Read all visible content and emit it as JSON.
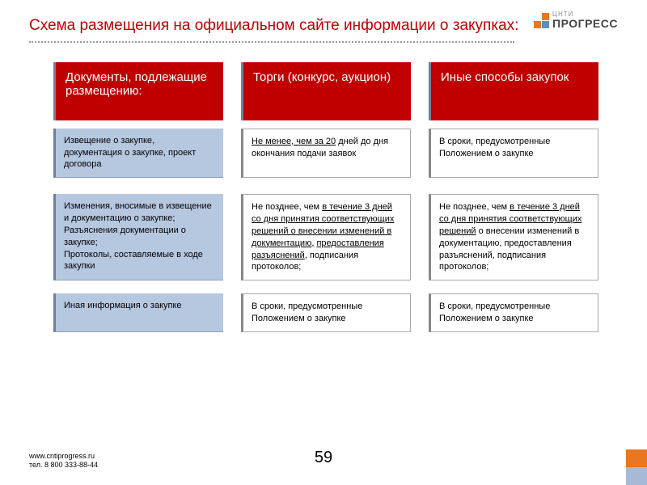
{
  "title": "Схема размещения на официальном сайте информации о закупках:",
  "logo": {
    "small": "ЦНТИ",
    "big": "ПРОГРЕСС"
  },
  "headers": {
    "col1": "Документы, подлежащие размещению:",
    "col2": "Торги (конкурс, аукцион)",
    "col3": "Иные способы закупок"
  },
  "row1": {
    "left": "Извещение о закупке, документация о закупке, проект договора",
    "c2_pre": "",
    "c2_u": "Не менее, чем за 20",
    "c2_post": " дней до дня окончания подачи заявок",
    "c3": "В сроки, предусмотренные Положением о закупке"
  },
  "row2": {
    "left": "Изменения, вносимые в извещение и документацию о закупке;\nРазъяснения документации о закупке;\nПротоколы, составляемые в ходе\nзакупки",
    "c2_pre": "Не позднее, чем ",
    "c2_u1": "в течение 3 дней со дня принятия соответствующих решений о внесении изменений в документацию,",
    "c2_mid": " ",
    "c2_u2": "предоставления разъяснений",
    "c2_post": ", подписания протоколов;",
    "c3_pre": "Не позднее, чем ",
    "c3_u": "в течение 3 дней со дня принятия соответствующих решений",
    "c3_post": " о внесении изменений в документацию, предоставления разъяснений, подписания протоколов;"
  },
  "row3": {
    "left": "Иная информация о закупке",
    "c2": "В сроки, предусмотренные Положением о закупке",
    "c3": "В сроки, предусмотренные Положением о закупке"
  },
  "footer": {
    "url": "www.cntiprogress.ru",
    "tel": "тел. 8 800 333-88-44"
  },
  "page": "59",
  "colors": {
    "accent_red": "#c00000",
    "blue_cell": "#b6c7e0",
    "orange": "#e87722",
    "blue_sq": "#5b8fbf"
  }
}
